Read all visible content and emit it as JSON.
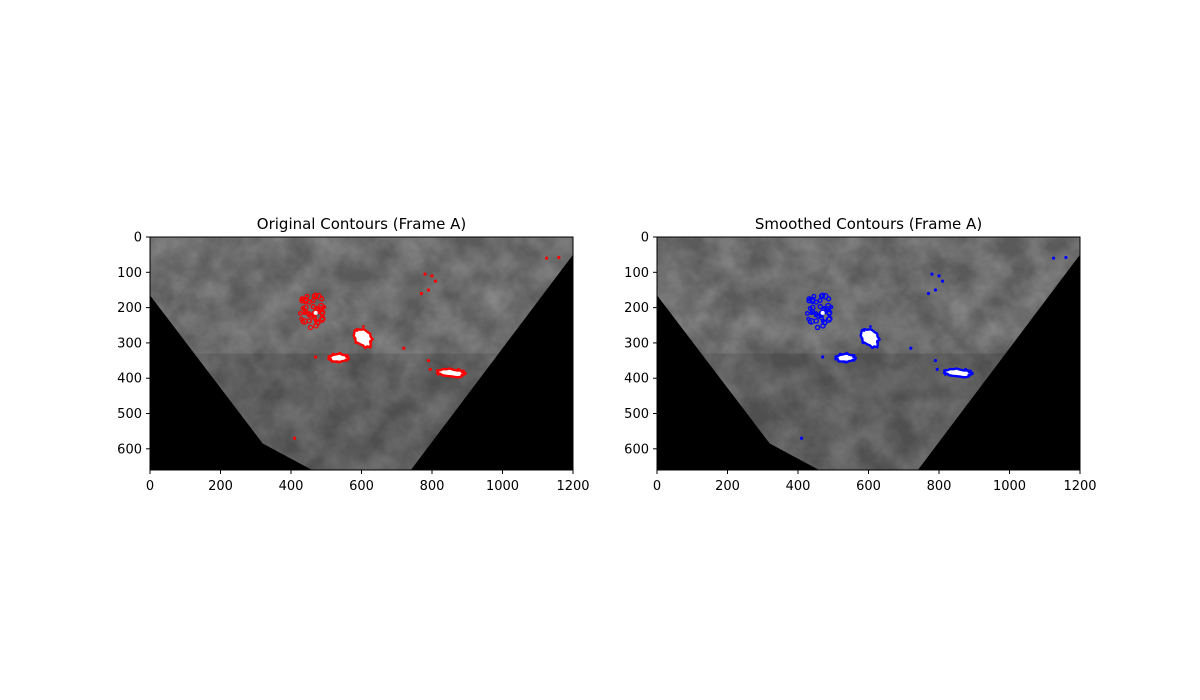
{
  "chart_data": [
    {
      "type": "image",
      "title": "Original Contours (Frame A)",
      "contour_color": "#ff0000",
      "xlim": [
        0,
        1200
      ],
      "ylim": [
        660,
        0
      ],
      "xticks": [
        0,
        200,
        400,
        600,
        800,
        1000,
        1200
      ],
      "yticks": [
        0,
        100,
        200,
        300,
        400,
        500,
        600
      ],
      "image_valid_region": [
        [
          0,
          0
        ],
        [
          1200,
          0
        ],
        [
          1200,
          50
        ],
        [
          740,
          660
        ],
        [
          460,
          660
        ],
        [
          320,
          585
        ],
        [
          0,
          165
        ]
      ],
      "contours": [
        {
          "kind": "cluster",
          "cx": 460,
          "cy": 210,
          "rx": 40,
          "ry": 50,
          "n": 46
        },
        {
          "kind": "blob",
          "cx": 605,
          "cy": 285,
          "rx": 22,
          "ry": 30,
          "rot": -30
        },
        {
          "kind": "blob",
          "cx": 535,
          "cy": 342,
          "rx": 28,
          "ry": 12,
          "rot": 0
        },
        {
          "kind": "blob",
          "cx": 855,
          "cy": 385,
          "rx": 38,
          "ry": 11,
          "rot": 5
        },
        {
          "kind": "dots",
          "points": [
            [
              780,
              105
            ],
            [
              800,
              110
            ],
            [
              810,
              125
            ],
            [
              790,
              150
            ],
            [
              770,
              160
            ],
            [
              720,
              315
            ],
            [
              790,
              350
            ],
            [
              795,
              375
            ],
            [
              1125,
              60
            ],
            [
              1160,
              58
            ],
            [
              470,
              340
            ],
            [
              410,
              570
            ]
          ]
        }
      ]
    },
    {
      "type": "image",
      "title": "Smoothed Contours (Frame A)",
      "contour_color": "#0000ff",
      "xlim": [
        0,
        1200
      ],
      "ylim": [
        660,
        0
      ],
      "xticks": [
        0,
        200,
        400,
        600,
        800,
        1000,
        1200
      ],
      "yticks": [
        0,
        100,
        200,
        300,
        400,
        500,
        600
      ],
      "image_valid_region": [
        [
          0,
          0
        ],
        [
          1200,
          0
        ],
        [
          1200,
          50
        ],
        [
          740,
          660
        ],
        [
          460,
          660
        ],
        [
          320,
          585
        ],
        [
          0,
          165
        ]
      ],
      "contours": [
        {
          "kind": "cluster",
          "cx": 460,
          "cy": 210,
          "rx": 40,
          "ry": 50,
          "n": 46
        },
        {
          "kind": "blob",
          "cx": 605,
          "cy": 285,
          "rx": 22,
          "ry": 30,
          "rot": -30
        },
        {
          "kind": "blob",
          "cx": 535,
          "cy": 342,
          "rx": 28,
          "ry": 12,
          "rot": 0
        },
        {
          "kind": "blob",
          "cx": 855,
          "cy": 385,
          "rx": 38,
          "ry": 11,
          "rot": 5
        },
        {
          "kind": "dots",
          "points": [
            [
              780,
              105
            ],
            [
              800,
              110
            ],
            [
              810,
              125
            ],
            [
              790,
              150
            ],
            [
              770,
              160
            ],
            [
              720,
              315
            ],
            [
              790,
              350
            ],
            [
              795,
              375
            ],
            [
              1125,
              60
            ],
            [
              1160,
              58
            ],
            [
              470,
              340
            ],
            [
              410,
              570
            ]
          ]
        }
      ]
    }
  ]
}
